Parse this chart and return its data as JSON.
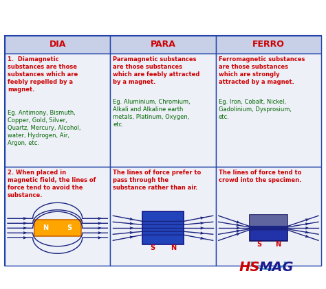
{
  "bg_outer": "#ffffff",
  "bg_table": "#dde4f0",
  "header_bg": "#c8d0e8",
  "cell_bg": "#eef0f8",
  "border_color": "#2244aa",
  "header_text_color": "#cc0000",
  "col_headers": [
    "DIA",
    "PARA",
    "FERRO"
  ],
  "dia_title": "1.  Diamagnetic\nsubstances are those\nsubstances which are\nfeebly repelled by a\nmagnet.",
  "dia_eg": "Eg. Antimony, Bismuth,\nCopper, Gold, Silver,\nQuartz, Mercury, Alcohol,\nwater, Hydrogen, Air,\nArgon, etc.",
  "para_title": "Paramagnetic substances\nare those substances\nwhich are feebly attracted\nby a magnet.",
  "para_eg": "Eg. Aluminium, Chromium,\nAlkali and Alkaline earth\nmetals, Platinum, Oxygen,\netc.",
  "ferro_title": "Ferromagnetic substances\nare those substances\nwhich are strongly\nattracted by a magnet.",
  "ferro_eg": "Eg. Iron, Cobalt, Nickel,\nGadolinium, Dysprosium,\netc.",
  "dia_r2": "2. When placed in\nmagnetic field, the lines of\nforce tend to avoid the\nsubstance.",
  "para_r2": "The lines of force prefer to\npass through the\nsubstance rather than air.",
  "ferro_r2": "The lines of force tend to\ncrowd into the specimen.",
  "title_color": "#cc0000",
  "eg_color": "#006600",
  "r2_text_color": "#cc0000",
  "line_color": "#1a237e",
  "magnet_dia_fill": "#ffa500",
  "magnet_dia_edge": "#cc6600",
  "magnet_para_fill": "#2244bb",
  "magnet_para_edge": "#111188",
  "magnet_ferro_fill": "#2233aa",
  "magnet_ferro_edge": "#111166",
  "magnet_ferro_gray": "#888899",
  "logo_hs_color": "#cc0000",
  "logo_mag_color": "#1a1a8c",
  "logo_arc_color": "#3399cc"
}
